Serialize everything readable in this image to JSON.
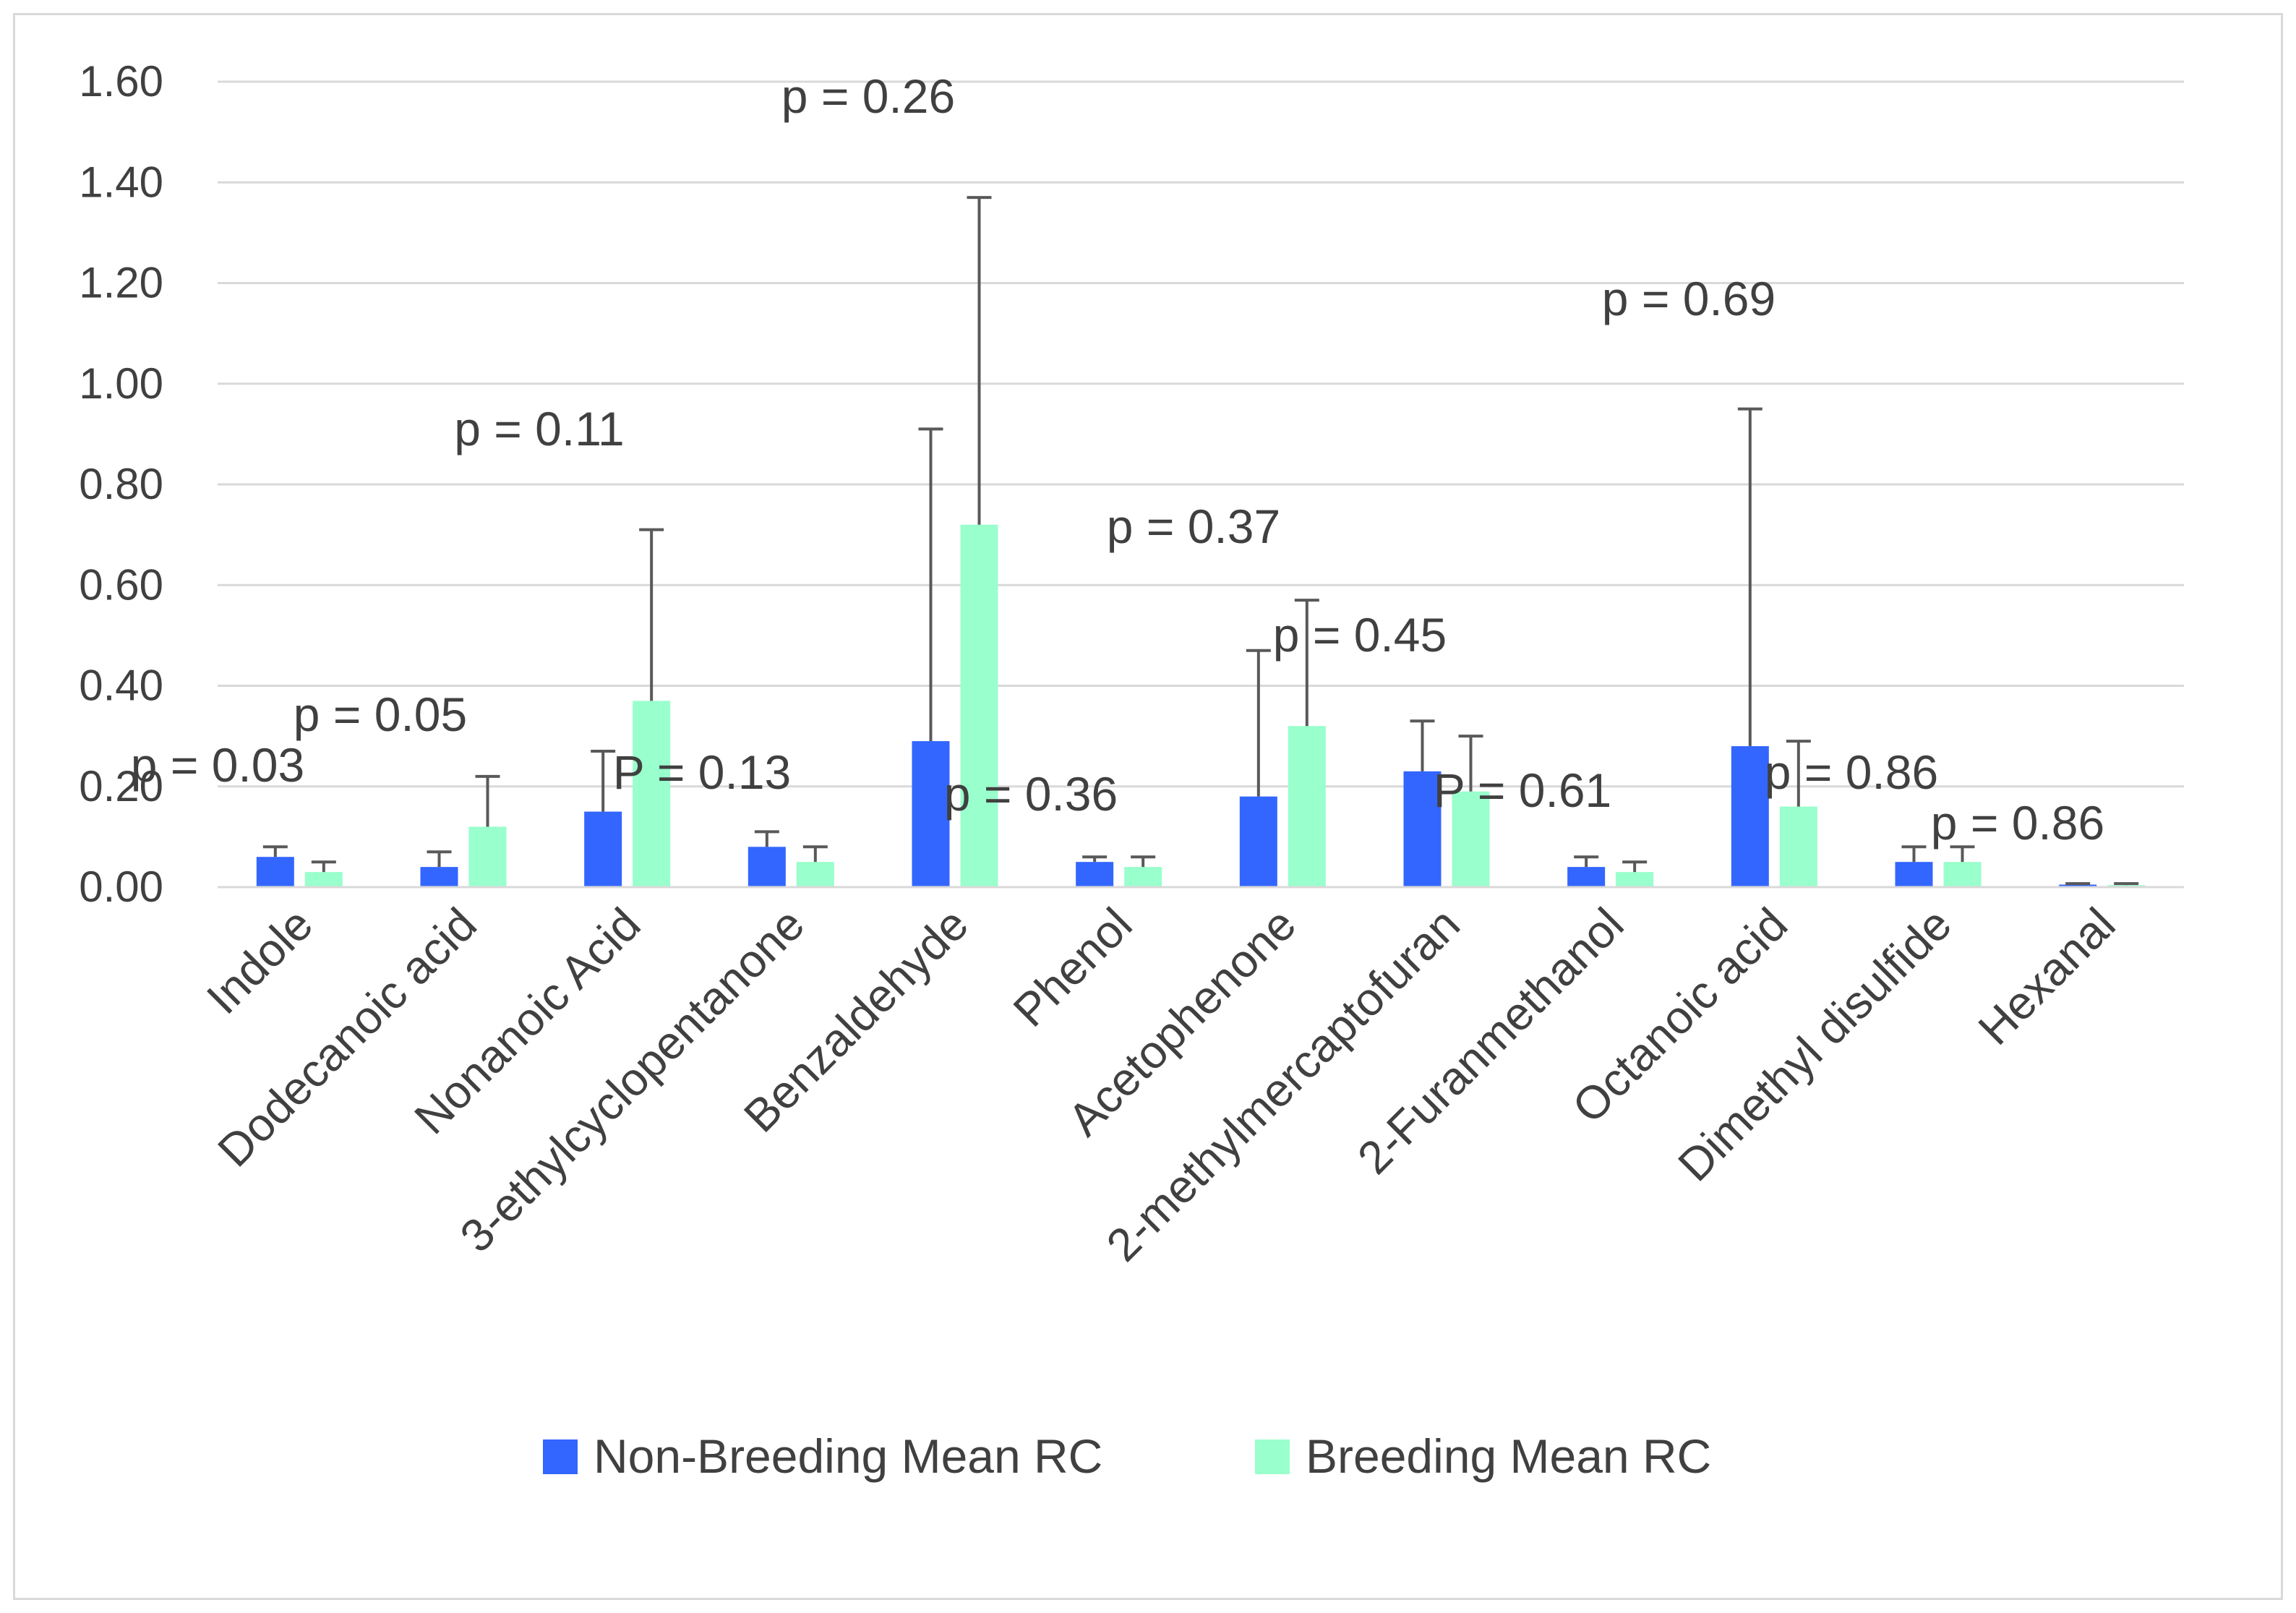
{
  "chart_data": {
    "type": "bar",
    "title": "",
    "xlabel": "",
    "ylabel": "",
    "ylim": [
      0,
      1.6
    ],
    "yticks": [
      "0.00",
      "0.20",
      "0.40",
      "0.60",
      "0.80",
      "1.00",
      "1.20",
      "1.40",
      "1.60"
    ],
    "categories": [
      "Indole",
      "Dodecanoic acid",
      "Nonanoic Acid",
      "3-ethylcyclopentanone",
      "Benzaldehyde",
      "Phenol",
      "Acetophenone",
      "2-methylmercaptofuran",
      "2-Furanmethanol",
      "Octanoic acid",
      "Dimethyl disulfide",
      "Hexanal"
    ],
    "series": [
      {
        "name": "Non-Breeding Mean RC",
        "color": "#3366ff",
        "values": [
          0.06,
          0.04,
          0.15,
          0.08,
          0.29,
          0.05,
          0.18,
          0.23,
          0.04,
          0.28,
          0.05,
          0.005
        ],
        "error_upper": [
          0.08,
          0.07,
          0.27,
          0.11,
          0.91,
          0.06,
          0.47,
          0.33,
          0.06,
          0.95,
          0.08,
          0.007
        ]
      },
      {
        "name": "Breeding Mean RC",
        "color": "#99ffcc",
        "values": [
          0.03,
          0.12,
          0.37,
          0.05,
          0.72,
          0.04,
          0.32,
          0.19,
          0.03,
          0.16,
          0.05,
          0.004
        ],
        "error_upper": [
          0.05,
          0.22,
          0.71,
          0.08,
          1.37,
          0.06,
          0.57,
          0.3,
          0.05,
          0.29,
          0.08,
          0.007
        ]
      }
    ],
    "annotations": [
      "p = 0.03",
      "p = 0.05",
      "p = 0.11",
      "P = 0.13",
      "p = 0.26",
      "p = 0.36",
      "p = 0.37",
      "p = 0.45",
      "P = 0.61",
      "p = 0.69",
      "p = 0.86",
      "p = 0.86"
    ],
    "legend_position": "bottom",
    "grid": true
  }
}
